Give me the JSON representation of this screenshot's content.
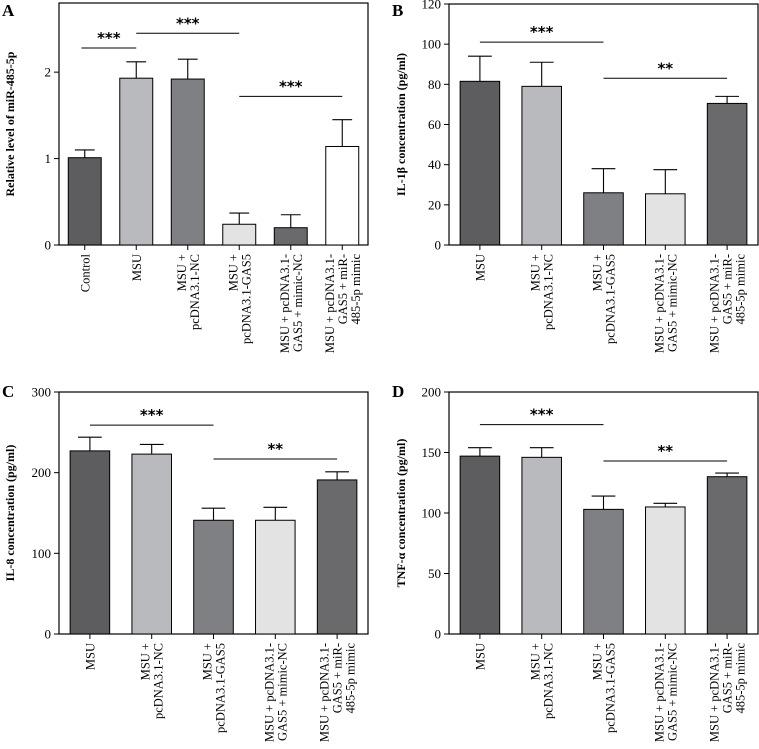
{
  "chart_data": [
    {
      "type": "bar",
      "panel": "A",
      "title": "",
      "xlabel": "",
      "ylabel": "Relative level of miR-485-5p",
      "ylim": [
        0,
        2.8
      ],
      "yticks": [
        0,
        1,
        2
      ],
      "categories": [
        "Control",
        "MSU",
        "MSU +\npcDNA3.1-NC",
        "MSU +\npcDNA3.1-GAS5",
        "MSU + pcDNA3.1-\nGAS5 + mimic-NC",
        "MSU + pcDNA3.1-\nGAS5 + miR-\n485-5p mimic"
      ],
      "values": [
        1.01,
        1.93,
        1.92,
        0.24,
        0.2,
        1.14
      ],
      "errors": [
        0.09,
        0.19,
        0.23,
        0.13,
        0.15,
        0.31
      ],
      "colors": [
        "#5d5d60",
        "#b9babd",
        "#7f8083",
        "#e3e3e3",
        "#6a6a6d",
        "#ffffff"
      ],
      "significance": [
        {
          "from": 0,
          "to": 1,
          "label": "***",
          "y": 2.28
        },
        {
          "from": 1,
          "to": 3,
          "label": "***",
          "y": 2.45
        },
        {
          "from": 3,
          "to": 5,
          "label": "***",
          "y": 1.72
        }
      ],
      "grid": false
    },
    {
      "type": "bar",
      "panel": "B",
      "title": "",
      "xlabel": "",
      "ylabel": "IL-1β concentration (pg/ml)",
      "ylim": [
        0,
        120
      ],
      "yticks": [
        0,
        20,
        40,
        60,
        80,
        100,
        120
      ],
      "categories": [
        "MSU",
        "MSU +\npcDNA3.1-NC",
        "MSU +\npcDNA3.1-GAS5",
        "MSU + pcDNA3.1-\nGAS5 + mimic-NC",
        "MSU + pcDNA3.1-\nGAS5 + miR-\n485-5p mimic"
      ],
      "values": [
        81.5,
        79,
        26,
        25.5,
        70.5
      ],
      "errors": [
        12.5,
        12,
        12,
        12,
        3.5
      ],
      "colors": [
        "#5d5d60",
        "#b9babd",
        "#7f8083",
        "#e3e3e3",
        "#6a6a6d"
      ],
      "significance": [
        {
          "from": 0,
          "to": 2,
          "label": "***",
          "y": 101
        },
        {
          "from": 2,
          "to": 4,
          "label": "**",
          "y": 83
        }
      ],
      "grid": false
    },
    {
      "type": "bar",
      "panel": "C",
      "title": "",
      "xlabel": "",
      "ylabel": "IL-8 concentration (pg/ml)",
      "ylim": [
        0,
        300
      ],
      "yticks": [
        0,
        100,
        200,
        300
      ],
      "categories": [
        "MSU",
        "MSU +\npcDNA3.1-NC",
        "MSU +\npcDNA3.1-GAS5",
        "MSU + pcDNA3.1-\nGAS5 + mimic-NC",
        "MSU + pcDNA3.1-\nGAS5 + miR-\n485-5p mimic"
      ],
      "values": [
        227,
        223,
        141,
        141,
        191
      ],
      "errors": [
        17,
        12,
        15,
        16,
        10
      ],
      "colors": [
        "#5d5d60",
        "#b9babd",
        "#7f8083",
        "#e3e3e3",
        "#6a6a6d"
      ],
      "significance": [
        {
          "from": 0,
          "to": 2,
          "label": "***",
          "y": 259
        },
        {
          "from": 2,
          "to": 4,
          "label": "**",
          "y": 217
        }
      ],
      "grid": false
    },
    {
      "type": "bar",
      "panel": "D",
      "title": "",
      "xlabel": "",
      "ylabel": "TNF-α concentration (pg/ml)",
      "ylim": [
        0,
        200
      ],
      "yticks": [
        0,
        50,
        100,
        150,
        200
      ],
      "categories": [
        "MSU",
        "MSU +\npcDNA3.1-NC",
        "MSU +\npcDNA3.1-GAS5",
        "MSU + pcDNA3.1-\nGAS5 + mimic-NC",
        "MSU + pcDNA3.1-\nGAS5 + miR-\n485-5p mimic"
      ],
      "values": [
        147,
        146,
        103,
        105,
        130
      ],
      "errors": [
        7,
        8,
        11,
        3,
        3
      ],
      "colors": [
        "#5d5d60",
        "#b9babd",
        "#7f8083",
        "#e3e3e3",
        "#6a6a6d"
      ],
      "significance": [
        {
          "from": 0,
          "to": 2,
          "label": "***",
          "y": 173
        },
        {
          "from": 2,
          "to": 4,
          "label": "**",
          "y": 143
        }
      ],
      "grid": false
    }
  ]
}
